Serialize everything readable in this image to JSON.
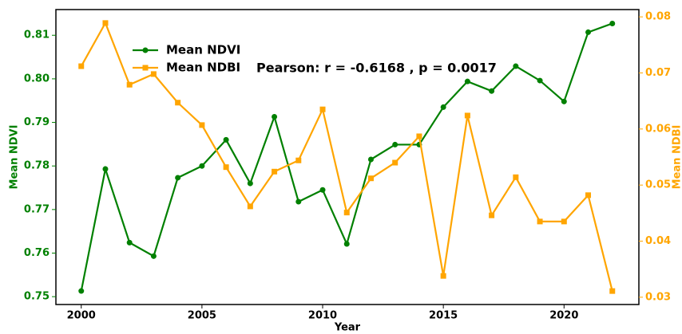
{
  "chart_data": {
    "type": "line",
    "x": [
      2000,
      2001,
      2002,
      2003,
      2004,
      2005,
      2006,
      2007,
      2008,
      2009,
      2010,
      2011,
      2012,
      2013,
      2014,
      2015,
      2016,
      2017,
      2018,
      2019,
      2020,
      2021,
      2022
    ],
    "series": [
      {
        "name": "Mean NDVI",
        "color": "#008000",
        "marker": "circle",
        "values": [
          0.7513,
          0.7793,
          0.7624,
          0.7593,
          0.7773,
          0.78,
          0.786,
          0.776,
          0.7913,
          0.7718,
          0.7745,
          0.7621,
          0.7815,
          0.7849,
          0.7849,
          0.7935,
          0.7994,
          0.7972,
          0.8029,
          0.7996,
          0.7948,
          0.8107,
          0.8127
        ]
      },
      {
        "name": "Mean NDBI",
        "color": "#ffa500",
        "marker": "square",
        "axis": "y2",
        "values": [
          0.0712,
          0.0789,
          0.0679,
          0.0698,
          0.0647,
          0.0607,
          0.0532,
          0.0462,
          0.0524,
          0.0544,
          0.0635,
          0.0451,
          0.0512,
          0.054,
          0.0587,
          0.0338,
          0.0624,
          0.0446,
          0.0514,
          0.0435,
          0.0435,
          0.0482,
          0.0311
        ]
      }
    ],
    "xlabel": "Year",
    "ylabel": "Mean NDVI",
    "y2label": "Mean NDBI",
    "annotation": "Pearson: r = -0.6168 , p = 0.0017",
    "xlim": [
      1998.95,
      2023.1
    ],
    "xticks": [
      2000,
      2005,
      2010,
      2015,
      2020
    ],
    "ylim": [
      0.7482,
      0.8159
    ],
    "yticks": [
      0.75,
      0.76,
      0.77,
      0.78,
      0.79,
      {
        "value": 0.8,
        "label": "0.80"
      },
      0.81
    ],
    "y2lim": [
      0.0287,
      0.0813
    ],
    "y2ticks": [
      0.03,
      0.04,
      0.05,
      0.06,
      0.07,
      0.08
    ],
    "legend": "upper left"
  }
}
